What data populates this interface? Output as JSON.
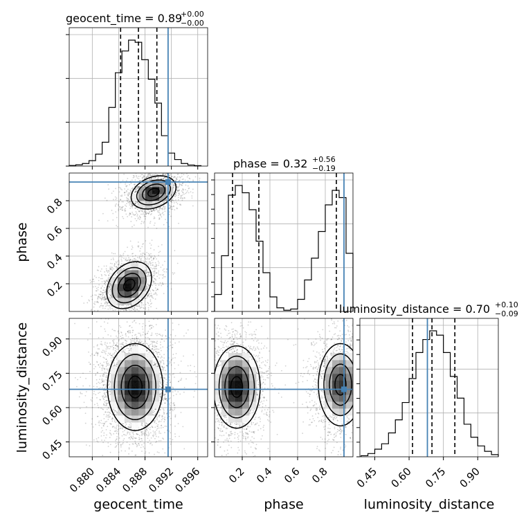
{
  "chart_data": {
    "type": "corner",
    "parameters": [
      "geocent_time",
      "phase",
      "luminosity_distance"
    ],
    "truths": {
      "geocent_time": 0.8915,
      "phase": 0.935,
      "luminosity_distance": 0.68
    },
    "truth_color": "#4682b4",
    "grid": true,
    "diagonals": [
      {
        "param": "geocent_time",
        "title_main": "geocent_time = 0.89",
        "title_plus": "+0.00",
        "title_minus": "−0.00",
        "quantiles": [
          0.8843,
          0.887,
          0.8898
        ],
        "hist": {
          "edges": [
            0.8765,
            0.8775,
            0.8785,
            0.8795,
            0.8805,
            0.8815,
            0.8825,
            0.8835,
            0.8845,
            0.8855,
            0.8865,
            0.8875,
            0.8885,
            0.8895,
            0.8905,
            0.8915,
            0.8925,
            0.8935,
            0.8945,
            0.8955,
            0.8965
          ],
          "counts": [
            0.3,
            0.6,
            1.2,
            2.5,
            5.5,
            11,
            27,
            43,
            53,
            58,
            57,
            49,
            40,
            29,
            14,
            6,
            3,
            1.2,
            0.5,
            0.2
          ]
        }
      },
      {
        "param": "phase",
        "title_main": "phase = 0.32",
        "title_plus": "+0.56",
        "title_minus": "−0.19",
        "quantiles": [
          0.13,
          0.32,
          0.88
        ],
        "hist": {
          "edges": [
            0.0,
            0.05,
            0.1,
            0.15,
            0.2,
            0.25,
            0.3,
            0.35,
            0.4,
            0.45,
            0.5,
            0.55,
            0.6,
            0.65,
            0.7,
            0.75,
            0.8,
            0.85,
            0.9,
            0.95,
            1.0
          ],
          "counts": [
            7,
            23,
            48,
            52,
            49,
            42,
            29,
            16,
            6,
            1.5,
            0.5,
            1,
            5,
            13,
            22,
            33,
            44,
            50,
            47,
            24
          ]
        }
      },
      {
        "param": "luminosity_distance",
        "title_main": "luminosity_distance = 0.70",
        "title_plus": "+0.10",
        "title_minus": "−0.09",
        "quantiles": [
          0.615,
          0.7,
          0.8
        ],
        "hist": {
          "edges": [
            0.39,
            0.42,
            0.45,
            0.48,
            0.51,
            0.54,
            0.57,
            0.6,
            0.63,
            0.66,
            0.69,
            0.72,
            0.75,
            0.78,
            0.81,
            0.84,
            0.87,
            0.9,
            0.93,
            0.96,
            0.99
          ],
          "counts": [
            0.5,
            1.5,
            3.5,
            6,
            11,
            17,
            25,
            36,
            48,
            54,
            58,
            56,
            48,
            37,
            27,
            15,
            9,
            5,
            2.5,
            1
          ]
        }
      }
    ],
    "axes": {
      "geocent_time": {
        "range": [
          0.8765,
          0.8975
        ],
        "ticks": [
          "0.880",
          "0.884",
          "0.888",
          "0.892",
          "0.896"
        ],
        "tick_values": [
          0.88,
          0.884,
          0.888,
          0.892,
          0.896
        ]
      },
      "phase": {
        "range": [
          0.0,
          1.0
        ],
        "ticks": [
          "0.2",
          "0.4",
          "0.6",
          "0.8"
        ],
        "tick_values": [
          0.2,
          0.4,
          0.6,
          0.8
        ]
      },
      "luminosity_distance": {
        "range": [
          0.385,
          0.99
        ],
        "ticks": [
          "0.45",
          "0.60",
          "0.75",
          "0.90"
        ],
        "tick_values": [
          0.45,
          0.6,
          0.75,
          0.9
        ]
      }
    },
    "pairs": [
      {
        "x": "geocent_time",
        "y": "phase",
        "modes": [
          {
            "cx": 0.8856,
            "cy": 0.19,
            "sx": 0.0017,
            "sy": 0.085,
            "rho": 0.3,
            "n": 1900
          },
          {
            "cx": 0.8893,
            "cy": 0.86,
            "sx": 0.0017,
            "sy": 0.06,
            "rho": 0.3,
            "n": 1800
          }
        ]
      },
      {
        "x": "geocent_time",
        "y": "luminosity_distance",
        "modes": [
          {
            "cx": 0.8865,
            "cy": 0.69,
            "sx": 0.0021,
            "sy": 0.095,
            "rho": 0.0,
            "n": 3200
          }
        ]
      },
      {
        "x": "phase",
        "y": "luminosity_distance",
        "modes": [
          {
            "cx": 0.16,
            "cy": 0.69,
            "sx": 0.085,
            "sy": 0.09,
            "rho": 0.0,
            "n": 1800
          },
          {
            "cx": 0.91,
            "cy": 0.7,
            "sx": 0.08,
            "sy": 0.09,
            "rho": 0.0,
            "n": 1500
          }
        ]
      }
    ]
  }
}
